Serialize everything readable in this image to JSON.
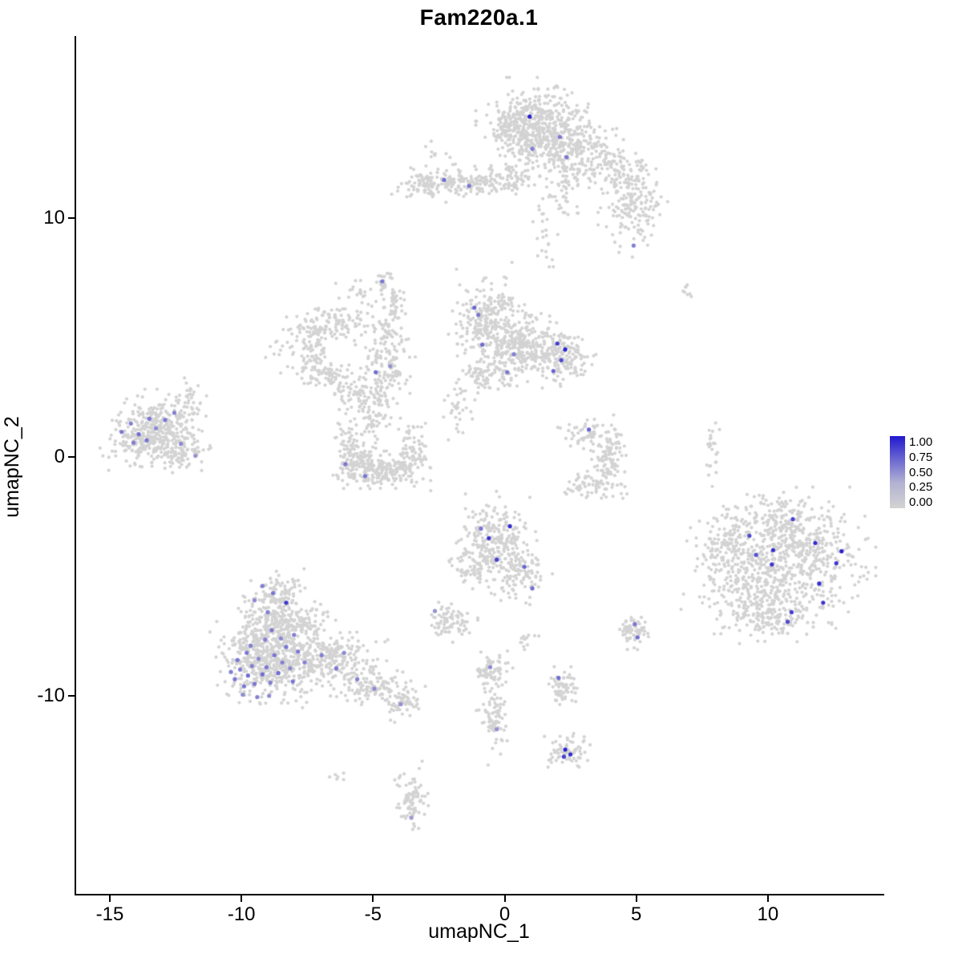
{
  "chart_data": {
    "type": "scatter",
    "title": "Fam220a.1",
    "xlabel": "umapNC_1",
    "ylabel": "umapNC_2",
    "xlim": [
      -16.28,
      14.33
    ],
    "ylim": [
      -18.29,
      17.62
    ],
    "grid": false,
    "x_ticks": {
      "values": [
        -15,
        -10,
        -5,
        0,
        5,
        10
      ],
      "labels": [
        "-15",
        "-10",
        "-5",
        "0",
        "5",
        "10"
      ]
    },
    "y_ticks": {
      "values": [
        10,
        0,
        -10
      ],
      "labels": [
        "10",
        "0",
        "-10"
      ]
    },
    "background_point_color_low": "#d3d3d3",
    "highlight_color_high": "#2119d0",
    "point_radius": 2.1,
    "highlight_radius": 2.6,
    "legend": {
      "position": "right",
      "labels": [
        "1.00",
        "0.75",
        "0.50",
        "0.25",
        "0.00"
      ],
      "values": [
        1.0,
        0.75,
        0.5,
        0.25,
        0.0
      ]
    },
    "clusters": [
      [
        1.2,
        14.0,
        0.85,
        0.7,
        420
      ],
      [
        2.3,
        13.0,
        0.75,
        0.55,
        200
      ],
      [
        0.3,
        13.6,
        0.45,
        0.5,
        90
      ],
      [
        2.4,
        11.5,
        0.3,
        0.7,
        60
      ],
      [
        3.3,
        12.4,
        0.65,
        0.55,
        90
      ],
      [
        4.9,
        10.6,
        0.5,
        0.95,
        170
      ],
      [
        4.4,
        12.0,
        0.5,
        0.45,
        60
      ],
      [
        1.6,
        9.4,
        0.25,
        0.8,
        24
      ],
      [
        -1.5,
        11.5,
        1.05,
        0.28,
        190
      ],
      [
        -3.0,
        11.3,
        0.4,
        0.3,
        50
      ],
      [
        0.35,
        11.7,
        0.5,
        0.3,
        45
      ],
      [
        -6.4,
        5.6,
        0.8,
        0.35,
        110
      ],
      [
        -7.3,
        4.5,
        0.35,
        0.7,
        90
      ],
      [
        -6.6,
        3.3,
        0.6,
        0.35,
        70
      ],
      [
        -5.4,
        2.7,
        0.55,
        0.4,
        80
      ],
      [
        -4.45,
        3.9,
        0.4,
        0.85,
        130
      ],
      [
        -4.3,
        6.2,
        0.25,
        0.75,
        60
      ],
      [
        -4.9,
        1.7,
        0.35,
        0.55,
        55
      ],
      [
        -5.6,
        7.0,
        0.5,
        0.28,
        22
      ],
      [
        -8.4,
        4.7,
        0.3,
        0.5,
        16
      ],
      [
        0.5,
        4.6,
        0.85,
        0.6,
        380
      ],
      [
        -1.0,
        5.8,
        0.42,
        0.5,
        110
      ],
      [
        2.2,
        4.1,
        0.5,
        0.45,
        140
      ],
      [
        -0.7,
        3.4,
        0.5,
        0.35,
        70
      ],
      [
        -0.2,
        6.3,
        0.5,
        0.3,
        60
      ],
      [
        -1.7,
        2.0,
        0.3,
        0.65,
        35
      ],
      [
        -0.6,
        7.2,
        0.8,
        0.35,
        14
      ],
      [
        -13.3,
        1.0,
        0.78,
        0.68,
        430
      ],
      [
        -12.0,
        2.3,
        0.25,
        0.4,
        35
      ],
      [
        -12.2,
        0.2,
        0.42,
        0.3,
        60
      ],
      [
        -5.9,
        0.3,
        0.3,
        0.6,
        80
      ],
      [
        -4.7,
        -0.6,
        0.7,
        0.3,
        170
      ],
      [
        -3.5,
        0.2,
        0.3,
        0.6,
        80
      ],
      [
        -5.3,
        -0.15,
        0.4,
        0.4,
        60
      ],
      [
        3.1,
        1.0,
        0.4,
        0.3,
        50
      ],
      [
        4.0,
        0.0,
        0.3,
        0.68,
        110
      ],
      [
        3.3,
        -1.2,
        0.5,
        0.3,
        70
      ],
      [
        -0.4,
        -3.6,
        0.65,
        0.8,
        280
      ],
      [
        0.6,
        -4.9,
        0.45,
        0.5,
        90
      ],
      [
        -1.3,
        -4.6,
        0.3,
        0.4,
        50
      ],
      [
        -8.9,
        -8.3,
        0.85,
        0.85,
        620
      ],
      [
        -8.7,
        -5.9,
        0.55,
        0.45,
        130
      ],
      [
        -8.5,
        -7.0,
        0.5,
        0.4,
        100
      ],
      [
        -6.6,
        -8.5,
        0.8,
        0.55,
        230
      ],
      [
        -5.0,
        -9.6,
        0.6,
        0.4,
        120
      ],
      [
        -3.9,
        -10.3,
        0.35,
        0.3,
        60
      ],
      [
        -7.5,
        -6.8,
        0.4,
        0.4,
        45
      ],
      [
        9.4,
        -4.9,
        1.0,
        1.05,
        380
      ],
      [
        11.4,
        -4.1,
        1.0,
        1.05,
        390
      ],
      [
        10.5,
        -2.6,
        0.8,
        0.5,
        120
      ],
      [
        10.3,
        -6.6,
        0.9,
        0.5,
        130
      ],
      [
        8.3,
        -3.4,
        0.5,
        0.6,
        80
      ],
      [
        4.9,
        -7.3,
        0.3,
        0.35,
        65
      ],
      [
        -2.1,
        -6.9,
        0.4,
        0.35,
        80
      ],
      [
        -0.5,
        -8.9,
        0.3,
        0.3,
        55
      ],
      [
        -0.4,
        -10.6,
        0.25,
        0.85,
        90
      ],
      [
        2.3,
        -12.3,
        0.35,
        0.3,
        70
      ],
      [
        2.2,
        -9.6,
        0.28,
        0.4,
        60
      ],
      [
        -3.5,
        -14.4,
        0.25,
        0.65,
        85
      ],
      [
        6.9,
        7.0,
        0.15,
        0.2,
        8
      ],
      [
        7.9,
        0.2,
        0.12,
        0.75,
        25
      ],
      [
        -4.6,
        7.4,
        0.15,
        0.2,
        10
      ],
      [
        0.9,
        -7.7,
        0.2,
        0.2,
        12
      ],
      [
        -6.4,
        -13.4,
        0.15,
        0.15,
        6
      ],
      [
        -2.6,
        12.7,
        0.2,
        0.2,
        10
      ]
    ],
    "highlights": [
      [
        0.95,
        14.25,
        0.95
      ],
      [
        2.1,
        13.4,
        0.5
      ],
      [
        1.05,
        12.9,
        0.45
      ],
      [
        2.35,
        12.55,
        0.5
      ],
      [
        -2.3,
        11.6,
        0.55
      ],
      [
        -1.35,
        11.35,
        0.5
      ],
      [
        4.9,
        8.85,
        0.45
      ],
      [
        -4.65,
        7.35,
        0.5
      ],
      [
        -4.9,
        3.55,
        0.55
      ],
      [
        -4.35,
        3.8,
        0.35
      ],
      [
        -1.15,
        6.25,
        0.6
      ],
      [
        -1.0,
        5.95,
        0.5
      ],
      [
        -0.85,
        4.7,
        0.55
      ],
      [
        0.1,
        3.55,
        0.5
      ],
      [
        2.0,
        4.75,
        0.8
      ],
      [
        2.3,
        4.5,
        0.95
      ],
      [
        2.15,
        4.05,
        0.75
      ],
      [
        1.85,
        3.6,
        0.6
      ],
      [
        0.35,
        4.3,
        0.45
      ],
      [
        -14.55,
        1.05,
        0.5
      ],
      [
        -14.2,
        1.4,
        0.45
      ],
      [
        -13.9,
        0.95,
        0.55
      ],
      [
        -13.5,
        1.6,
        0.5
      ],
      [
        -13.25,
        1.2,
        0.4
      ],
      [
        -12.9,
        1.55,
        0.5
      ],
      [
        -12.55,
        1.85,
        0.45
      ],
      [
        -13.6,
        0.7,
        0.5
      ],
      [
        -12.3,
        0.55,
        0.4
      ],
      [
        -11.75,
        0.05,
        0.35
      ],
      [
        -14.1,
        0.6,
        0.45
      ],
      [
        -6.05,
        -0.3,
        0.5
      ],
      [
        -5.3,
        -0.8,
        0.5
      ],
      [
        3.2,
        1.15,
        0.6
      ],
      [
        0.2,
        -2.9,
        0.9
      ],
      [
        -0.6,
        -3.4,
        0.85
      ],
      [
        -0.3,
        -4.3,
        0.8
      ],
      [
        0.75,
        -4.6,
        0.6
      ],
      [
        1.05,
        -5.5,
        0.55
      ],
      [
        -0.9,
        -3.0,
        0.5
      ],
      [
        -9.2,
        -5.4,
        0.45
      ],
      [
        -8.8,
        -5.7,
        0.5
      ],
      [
        -9.5,
        -6.0,
        0.4
      ],
      [
        -8.3,
        -6.1,
        0.85
      ],
      [
        -9.0,
        -6.5,
        0.45
      ],
      [
        -10.25,
        -9.3,
        0.5
      ],
      [
        -10.05,
        -8.9,
        0.45
      ],
      [
        -9.9,
        -9.6,
        0.5
      ],
      [
        -9.75,
        -9.15,
        0.55
      ],
      [
        -9.6,
        -8.75,
        0.45
      ],
      [
        -9.5,
        -9.5,
        0.5
      ],
      [
        -9.35,
        -8.45,
        0.4
      ],
      [
        -9.2,
        -9.1,
        0.55
      ],
      [
        -9.05,
        -8.8,
        0.5
      ],
      [
        -8.9,
        -9.45,
        0.45
      ],
      [
        -8.75,
        -8.3,
        0.5
      ],
      [
        -8.6,
        -9.05,
        0.55
      ],
      [
        -8.45,
        -8.6,
        0.45
      ],
      [
        -8.3,
        -7.95,
        0.5
      ],
      [
        -8.15,
        -8.85,
        0.4
      ],
      [
        -9.8,
        -8.2,
        0.5
      ],
      [
        -9.1,
        -7.65,
        0.45
      ],
      [
        -8.85,
        -7.25,
        0.5
      ],
      [
        -8.5,
        -7.6,
        0.4
      ],
      [
        -9.65,
        -7.9,
        0.45
      ],
      [
        -10.15,
        -8.5,
        0.5
      ],
      [
        -8.0,
        -7.45,
        0.45
      ],
      [
        -7.85,
        -8.15,
        0.5
      ],
      [
        -9.95,
        -9.95,
        0.4
      ],
      [
        -9.4,
        -10.05,
        0.45
      ],
      [
        -8.95,
        -10.0,
        0.4
      ],
      [
        -10.4,
        -9.0,
        0.45
      ],
      [
        -8.05,
        -9.4,
        0.5
      ],
      [
        -7.6,
        -8.6,
        0.45
      ],
      [
        -6.95,
        -8.3,
        0.45
      ],
      [
        -6.4,
        -8.85,
        0.5
      ],
      [
        -6.1,
        -8.2,
        0.4
      ],
      [
        -4.95,
        -9.7,
        0.4
      ],
      [
        -3.95,
        -10.35,
        0.35
      ],
      [
        -5.6,
        -9.3,
        0.45
      ],
      [
        9.3,
        -3.3,
        0.75
      ],
      [
        10.2,
        -3.9,
        0.9
      ],
      [
        10.15,
        -4.5,
        0.85
      ],
      [
        11.8,
        -3.6,
        0.9
      ],
      [
        12.8,
        -3.95,
        0.95
      ],
      [
        12.6,
        -4.45,
        0.85
      ],
      [
        11.95,
        -5.3,
        0.9
      ],
      [
        12.1,
        -6.1,
        0.85
      ],
      [
        10.9,
        -6.5,
        0.8
      ],
      [
        10.75,
        -6.9,
        0.75
      ],
      [
        10.95,
        -2.6,
        0.8
      ],
      [
        9.55,
        -4.1,
        0.7
      ],
      [
        4.95,
        -7.0,
        0.5
      ],
      [
        5.05,
        -7.55,
        0.55
      ],
      [
        -2.65,
        -6.45,
        0.35
      ],
      [
        -0.55,
        -8.8,
        0.4
      ],
      [
        -0.3,
        -11.4,
        0.35
      ],
      [
        2.3,
        -12.25,
        0.95
      ],
      [
        2.5,
        -12.45,
        0.9
      ],
      [
        2.25,
        -12.55,
        0.8
      ],
      [
        2.05,
        -9.25,
        0.55
      ],
      [
        -3.55,
        -15.1,
        0.3
      ]
    ]
  }
}
